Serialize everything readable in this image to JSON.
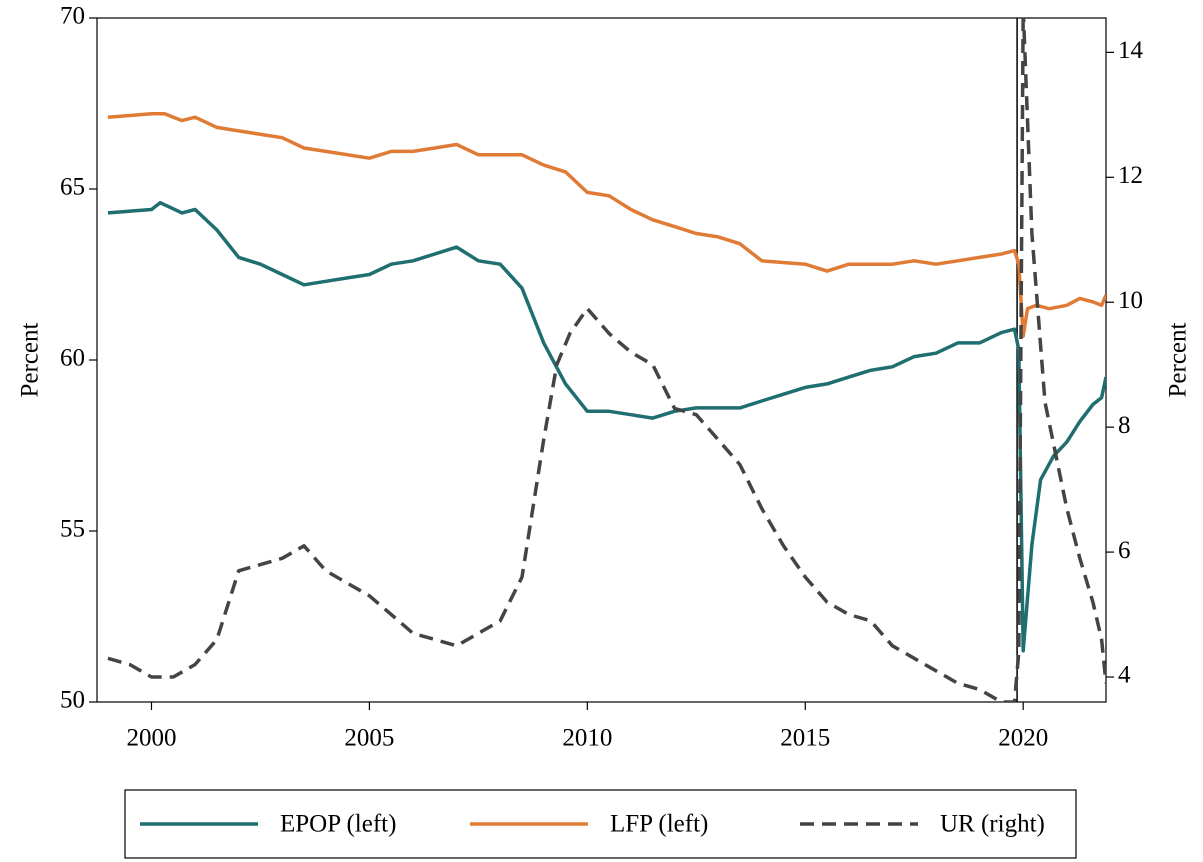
{
  "chart_data": {
    "type": "line",
    "x_label": "Percent",
    "y_label": "Percent",
    "y2_label": "Percent",
    "xlim": [
      1998.75,
      2021.9
    ],
    "xticks": [
      2000,
      2005,
      2010,
      2015,
      2020
    ],
    "ylim": [
      50,
      70
    ],
    "yticks": [
      50,
      55,
      60,
      65,
      70
    ],
    "y2lim": [
      3.6,
      14.55
    ],
    "y2ticks": [
      4,
      6,
      8,
      10,
      12,
      14
    ],
    "vline": 2019.86,
    "series": [
      {
        "name": "EPOP (left)",
        "color": "#1f6e70",
        "dash": "solid",
        "x": [
          1999,
          2000,
          2000.2,
          2000.7,
          2001,
          2001.5,
          2002,
          2002.5,
          2003,
          2003.5,
          2004,
          2004.5,
          2005,
          2005.5,
          2006,
          2006.5,
          2007,
          2007.5,
          2008,
          2008.5,
          2009,
          2009.5,
          2010,
          2010.5,
          2011,
          2011.5,
          2012,
          2012.5,
          2013,
          2013.5,
          2014,
          2014.5,
          2015,
          2015.5,
          2016,
          2016.5,
          2017,
          2017.5,
          2018,
          2018.5,
          2019,
          2019.5,
          2019.8,
          2019.9,
          2020.0,
          2020.2,
          2020.4,
          2020.7,
          2021,
          2021.3,
          2021.6,
          2021.8,
          2021.9
        ],
        "values": [
          64.3,
          64.4,
          64.6,
          64.3,
          64.4,
          63.8,
          63.0,
          62.8,
          62.5,
          62.2,
          62.3,
          62.4,
          62.5,
          62.8,
          62.9,
          63.1,
          63.3,
          62.9,
          62.8,
          62.1,
          60.5,
          59.3,
          58.5,
          58.5,
          58.4,
          58.3,
          58.5,
          58.6,
          58.6,
          58.6,
          58.8,
          59.0,
          59.2,
          59.3,
          59.5,
          59.7,
          59.8,
          60.1,
          60.2,
          60.5,
          60.5,
          60.8,
          60.9,
          60.3,
          51.5,
          54.6,
          56.5,
          57.2,
          57.6,
          58.2,
          58.7,
          58.9,
          59.5
        ]
      },
      {
        "name": "LFP (left)",
        "color": "#e07b35",
        "dash": "solid",
        "x": [
          1999,
          2000,
          2000.3,
          2000.7,
          2001,
          2001.5,
          2002,
          2003,
          2003.5,
          2004,
          2005,
          2005.5,
          2006,
          2006.5,
          2007,
          2007.5,
          2008,
          2008.5,
          2009,
          2009.5,
          2010,
          2010.5,
          2011,
          2011.5,
          2012,
          2012.5,
          2013,
          2013.5,
          2014,
          2015,
          2015.5,
          2016,
          2017,
          2017.5,
          2018,
          2018.5,
          2019,
          2019.5,
          2019.8,
          2019.9,
          2020.0,
          2020.1,
          2020.3,
          2020.6,
          2021,
          2021.3,
          2021.6,
          2021.8,
          2021.9
        ],
        "values": [
          67.1,
          67.2,
          67.2,
          67.0,
          67.1,
          66.8,
          66.7,
          66.5,
          66.2,
          66.1,
          65.9,
          66.1,
          66.1,
          66.2,
          66.3,
          66.0,
          66.0,
          66.0,
          65.7,
          65.5,
          64.9,
          64.8,
          64.4,
          64.1,
          63.9,
          63.7,
          63.6,
          63.4,
          62.9,
          62.8,
          62.6,
          62.8,
          62.8,
          62.9,
          62.8,
          62.9,
          63.0,
          63.1,
          63.2,
          62.8,
          60.7,
          61.5,
          61.6,
          61.5,
          61.6,
          61.8,
          61.7,
          61.6,
          61.9
        ]
      },
      {
        "name": "UR (right)",
        "color": "#444444",
        "dash": "dashed",
        "axis": "y2",
        "x": [
          1999,
          1999.5,
          2000,
          2000.5,
          2001,
          2001.5,
          2002,
          2002.5,
          2003,
          2003.5,
          2004,
          2004.5,
          2005,
          2005.5,
          2006,
          2006.5,
          2007,
          2007.5,
          2008,
          2008.5,
          2009,
          2009.3,
          2009.6,
          2010,
          2010.5,
          2011,
          2011.5,
          2012,
          2012.5,
          2013,
          2013.5,
          2014,
          2014.5,
          2015,
          2015.5,
          2016,
          2016.5,
          2017,
          2017.5,
          2018,
          2018.5,
          2019,
          2019.5,
          2019.8,
          2019.9,
          2020.0,
          2020.2,
          2020.5,
          2021,
          2021.3,
          2021.6,
          2021.8,
          2021.9
        ],
        "values": [
          4.3,
          4.2,
          4.0,
          4.0,
          4.2,
          4.6,
          5.7,
          5.8,
          5.9,
          6.1,
          5.7,
          5.5,
          5.3,
          5.0,
          4.7,
          4.6,
          4.5,
          4.7,
          4.9,
          5.6,
          7.8,
          9.0,
          9.5,
          9.9,
          9.5,
          9.2,
          9.0,
          8.3,
          8.2,
          7.8,
          7.4,
          6.7,
          6.1,
          5.6,
          5.2,
          5.0,
          4.9,
          4.5,
          4.3,
          4.1,
          3.9,
          3.8,
          3.6,
          3.6,
          4.4,
          14.7,
          11.1,
          8.4,
          6.7,
          5.9,
          5.2,
          4.6,
          3.9
        ]
      }
    ]
  }
}
